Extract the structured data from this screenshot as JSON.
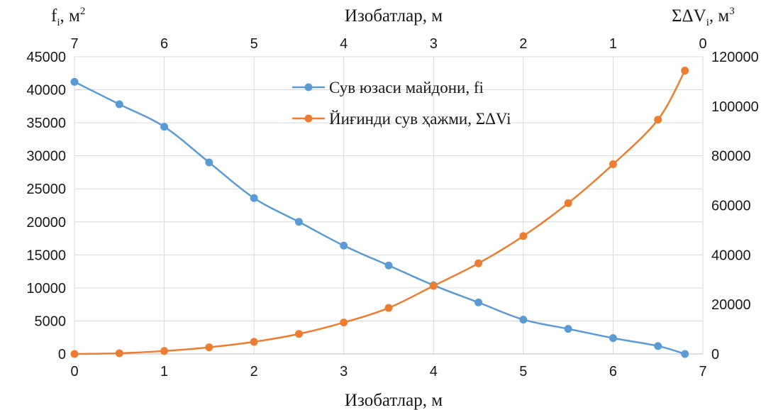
{
  "chart_data": {
    "type": "line",
    "grid": true,
    "legend_position": "top-center",
    "x_bottom": {
      "label": "Изобатлар, м",
      "range": [
        0,
        7
      ],
      "ticks": [
        "0",
        "1",
        "2",
        "3",
        "4",
        "5",
        "6",
        "7"
      ]
    },
    "x_top": {
      "label": "Изобатлар, м",
      "ticks": [
        "7",
        "6",
        "5",
        "4",
        "3",
        "2",
        "1",
        "0"
      ]
    },
    "y_left": {
      "label": "f",
      "label_subscript": "i",
      "label_unit": ",  м",
      "label_unit_sup": "2",
      "range": [
        0,
        45000
      ],
      "ticks": [
        "0",
        "5000",
        "10000",
        "15000",
        "20000",
        "25000",
        "30000",
        "35000",
        "40000",
        "45000"
      ]
    },
    "y_right": {
      "label": "ΣΔV",
      "label_subscript": "i",
      "label_unit": ",  м",
      "label_unit_sup": "3",
      "range": [
        0,
        120000
      ],
      "ticks": [
        "0",
        "20000",
        "40000",
        "60000",
        "80000",
        "100000",
        "120000"
      ]
    },
    "series": [
      {
        "name": "Сув юзаси майдони, fi",
        "axis": "left",
        "color": "#5b9bd5",
        "x": [
          0,
          0.5,
          1,
          1.5,
          2,
          2.5,
          3,
          3.5,
          4,
          4.5,
          5,
          5.5,
          6,
          6.5,
          6.8
        ],
        "values": [
          41200,
          37800,
          34400,
          29000,
          23600,
          20000,
          16400,
          13400,
          10400,
          7800,
          5200,
          3800,
          2400,
          1200,
          0
        ]
      },
      {
        "name": "Йиғинди сув ҳажми, ΣΔVi",
        "axis": "right",
        "color": "#ed7d31",
        "x": [
          0,
          0.5,
          1,
          1.5,
          2,
          2.5,
          3,
          3.5,
          4,
          4.5,
          5,
          5.5,
          6,
          6.5,
          6.8
        ],
        "values": [
          0,
          300,
          1200,
          2700,
          4900,
          8100,
          12700,
          18600,
          27500,
          36600,
          47600,
          60900,
          76600,
          94600,
          114400
        ]
      }
    ]
  }
}
